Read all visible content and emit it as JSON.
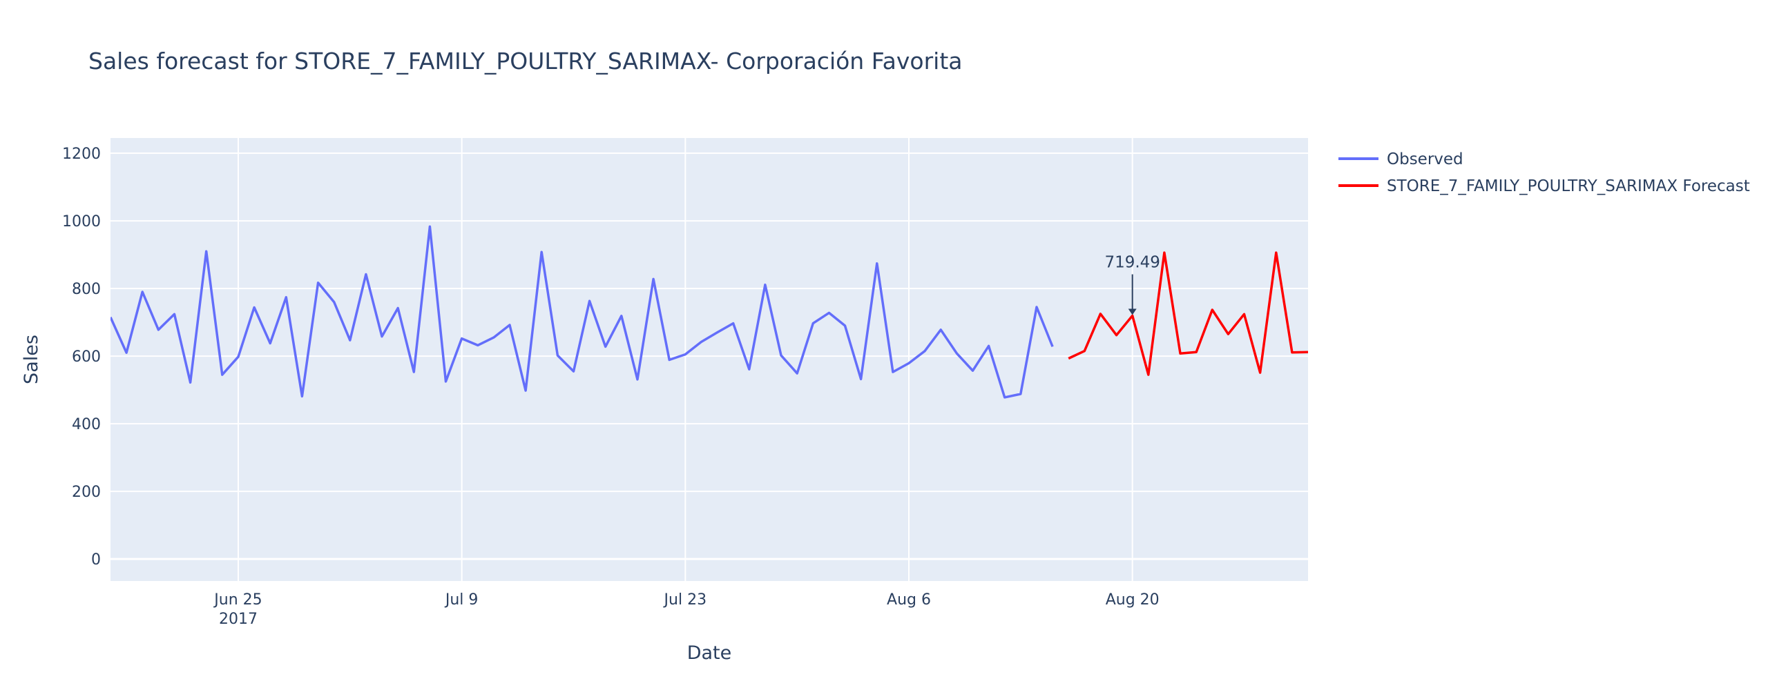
{
  "chart_data": {
    "type": "line",
    "title": "Sales forecast for STORE_7_FAMILY_POULTRY_SARIMAX- Corporación Favorita",
    "xlabel": "Date",
    "ylabel": "Sales",
    "x_range": [
      "2017-06-17",
      "2017-08-31"
    ],
    "ylim": [
      -65,
      1245
    ],
    "y_ticks": [
      0,
      200,
      400,
      600,
      800,
      1000,
      1200
    ],
    "x_ticks": [
      {
        "date": "2017-06-25",
        "label": "Jun 25",
        "sublabel": "2017"
      },
      {
        "date": "2017-07-09",
        "label": "Jul 9",
        "sublabel": ""
      },
      {
        "date": "2017-07-23",
        "label": "Jul 23",
        "sublabel": ""
      },
      {
        "date": "2017-08-06",
        "label": "Aug 6",
        "sublabel": ""
      },
      {
        "date": "2017-08-20",
        "label": "Aug 20",
        "sublabel": ""
      }
    ],
    "grid": true,
    "legend_position": "top-right",
    "colors": {
      "plot_background": "#e5ecf6",
      "grid": "#ffffff",
      "text": "#2a3f5f"
    },
    "series": [
      {
        "name": "Observed",
        "color": "#636efa",
        "start_date": "2017-06-17",
        "values": [
          715,
          610,
          790,
          678,
          724,
          522,
          910,
          545,
          598,
          744,
          638,
          774,
          481,
          817,
          760,
          647,
          842,
          658,
          742,
          553,
          983,
          525,
          652,
          632,
          655,
          692,
          498,
          908,
          602,
          555,
          763,
          628,
          719,
          531,
          828,
          589,
          605,
          642,
          670,
          697,
          561,
          811,
          602,
          549,
          697,
          728,
          690,
          532,
          874,
          553,
          579,
          615,
          678,
          608,
          557,
          630,
          478,
          488,
          745,
          628
        ]
      },
      {
        "name": "STORE_7_FAMILY_POULTRY_SARIMAX Forecast",
        "color": "#ff0000",
        "start_date": "2017-08-16",
        "values": [
          593,
          615,
          725,
          662,
          719.49,
          545,
          906,
          608,
          612,
          737,
          665,
          724,
          551,
          906,
          611,
          612
        ]
      }
    ],
    "annotations": [
      {
        "text": "719.49",
        "x": "2017-08-20",
        "y": 719.49
      }
    ]
  }
}
